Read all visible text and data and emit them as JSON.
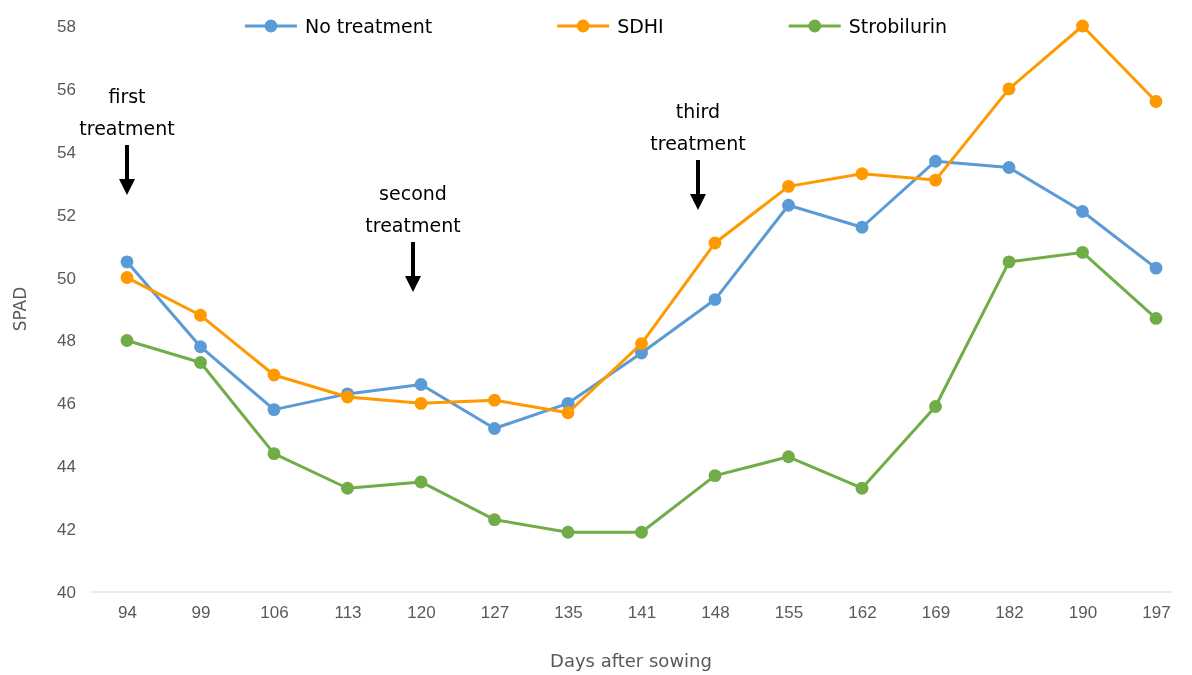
{
  "chart_data": {
    "type": "line",
    "xlabel": "Days after sowing",
    "ylabel": "SPAD",
    "categories": [
      "94",
      "99",
      "106",
      "113",
      "120",
      "127",
      "135",
      "141",
      "148",
      "155",
      "162",
      "169",
      "182",
      "190",
      "197"
    ],
    "series": [
      {
        "name": "No treatment",
        "color": "#5b9bd5",
        "values": [
          50.5,
          47.8,
          45.8,
          46.3,
          46.6,
          45.2,
          46.0,
          47.6,
          49.3,
          52.3,
          51.6,
          53.7,
          53.5,
          52.1,
          50.3
        ]
      },
      {
        "name": "SDHI",
        "color": "#ff9900",
        "values": [
          50.0,
          48.8,
          46.9,
          46.2,
          46.0,
          46.1,
          45.7,
          47.9,
          51.1,
          52.9,
          53.3,
          53.1,
          56.0,
          58.0,
          55.6
        ]
      },
      {
        "name": "Strobilurin",
        "color": "#70ad47",
        "values": [
          48.0,
          47.3,
          44.4,
          43.3,
          43.5,
          42.3,
          41.9,
          41.9,
          43.7,
          44.3,
          43.3,
          45.9,
          50.5,
          50.8,
          48.7
        ]
      }
    ],
    "ylim": [
      40,
      58
    ],
    "yticks": [
      40,
      42,
      44,
      46,
      48,
      50,
      52,
      54,
      56,
      58
    ],
    "marker": "circle",
    "line_style": "solid",
    "legend": "top",
    "annotations": [
      "first treatment",
      "second treatment",
      "third treatment"
    ]
  }
}
